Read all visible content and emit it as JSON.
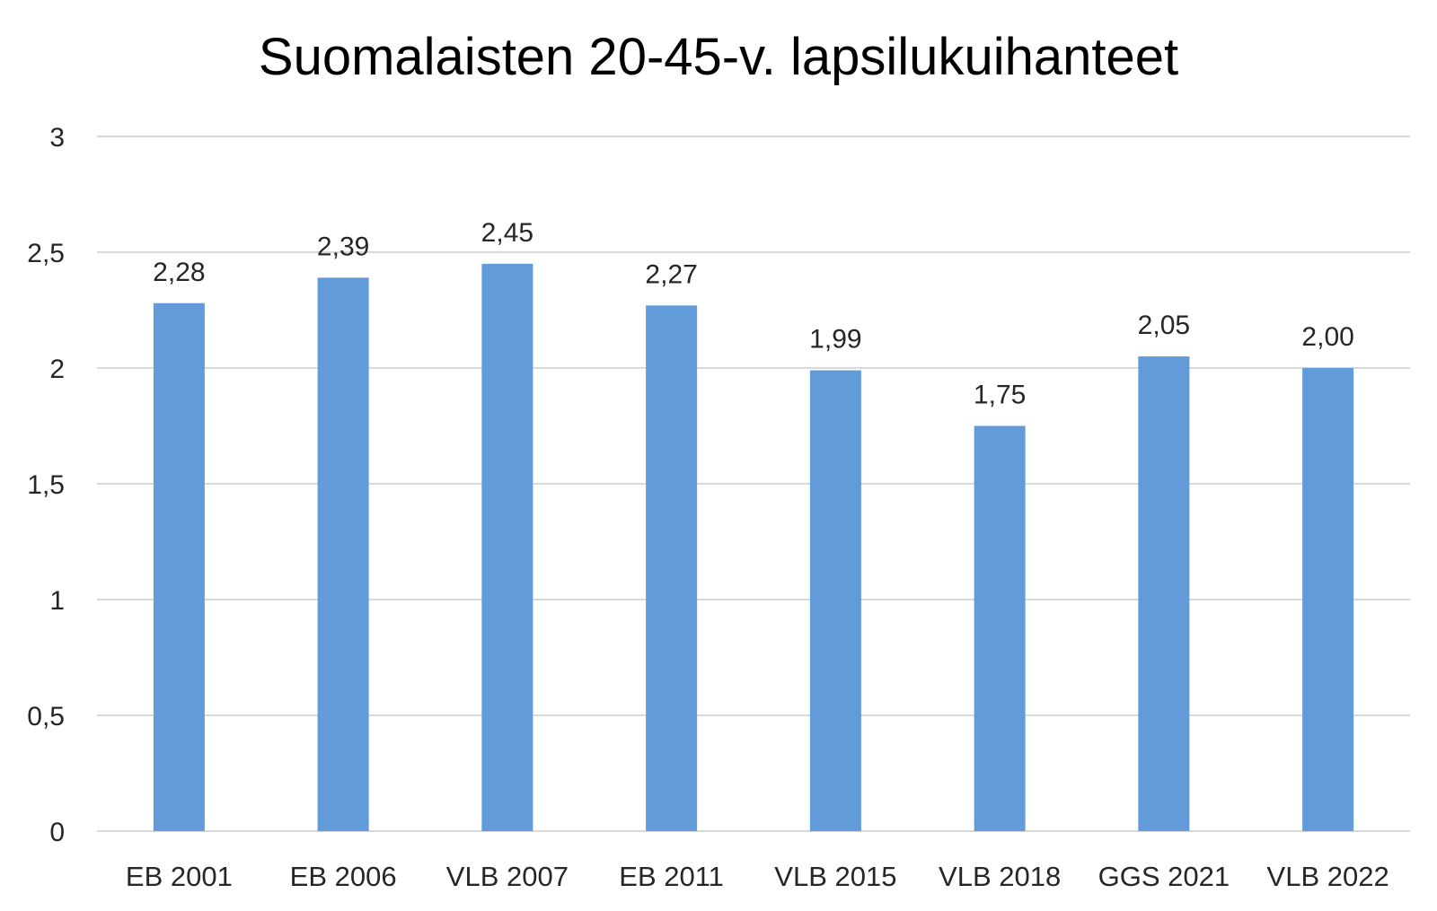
{
  "chart_data": {
    "type": "bar",
    "title": "Suomalaisten 20-45-v. lapsilukuihanteet",
    "xlabel": "",
    "ylabel": "",
    "categories": [
      "EB 2001",
      "EB 2006",
      "VLB 2007",
      "EB 2011",
      "VLB 2015",
      "VLB 2018",
      "GGS 2021",
      "VLB 2022"
    ],
    "values": [
      2.28,
      2.39,
      2.45,
      2.27,
      1.99,
      1.75,
      2.05,
      2.0
    ],
    "data_labels": [
      "2,28",
      "2,39",
      "2,45",
      "2,27",
      "1,99",
      "1,75",
      "2,05",
      "2,00"
    ],
    "ylim": [
      0,
      3
    ],
    "y_ticks": [
      0,
      0.5,
      1,
      1.5,
      2,
      2.5,
      3
    ],
    "y_tick_labels": [
      "0",
      "0,5",
      "1",
      "1,5",
      "2",
      "2,5",
      "3"
    ],
    "grid": true,
    "legend": "none",
    "colors": {
      "bar": "#619BD9",
      "grid": "#D9D9D9",
      "text": "#262626"
    }
  }
}
